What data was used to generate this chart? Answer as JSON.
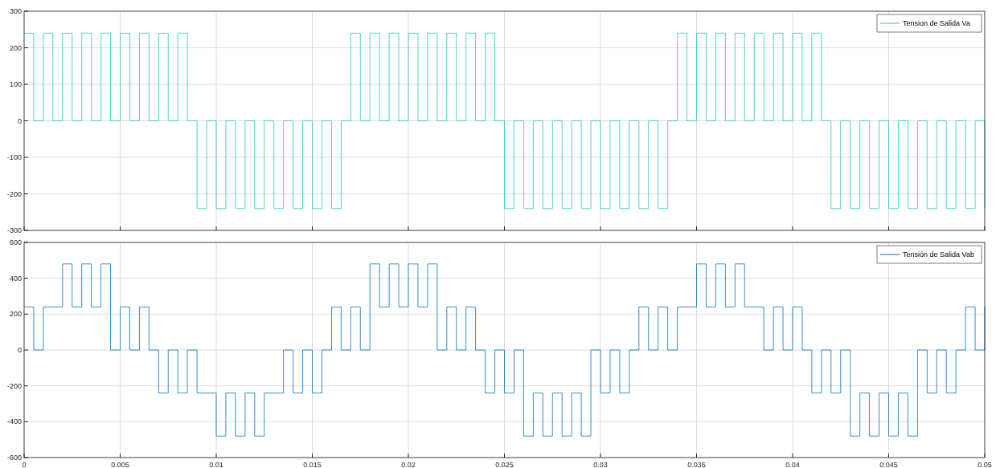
{
  "chart_data": [
    {
      "type": "step",
      "x": [
        0,
        0.0005,
        0.001,
        0.0015,
        0.002,
        0.0025,
        0.003,
        0.0035,
        0.004,
        0.0045,
        0.005,
        0.0055,
        0.006,
        0.0065,
        0.007,
        0.0075,
        0.008,
        0.0085,
        0.009,
        0.0095,
        0.01,
        0.0105,
        0.011,
        0.0115,
        0.012,
        0.0125,
        0.013,
        0.0135,
        0.014,
        0.0145,
        0.015,
        0.0155,
        0.016,
        0.0165,
        0.017,
        0.0175,
        0.018,
        0.0185,
        0.019,
        0.0195,
        0.02,
        0.0205,
        0.021,
        0.0215,
        0.022,
        0.0225,
        0.023,
        0.0235,
        0.024,
        0.0245,
        0.025,
        0.0255,
        0.026,
        0.0265,
        0.027,
        0.0275,
        0.028,
        0.0285,
        0.029,
        0.0295,
        0.03,
        0.0305,
        0.031,
        0.0315,
        0.032,
        0.0325,
        0.033,
        0.0335,
        0.034,
        0.0345,
        0.035,
        0.0355,
        0.036,
        0.0365,
        0.037,
        0.0375,
        0.038,
        0.0385,
        0.039,
        0.0395,
        0.04,
        0.0405,
        0.041,
        0.0415,
        0.042,
        0.0425,
        0.043,
        0.0435,
        0.044,
        0.0445,
        0.045,
        0.0455,
        0.046,
        0.0465,
        0.047,
        0.0475,
        0.048,
        0.0485,
        0.049,
        0.0495,
        0.05
      ],
      "series": [
        {
          "name": "Tension de Salida Va",
          "color": "#1ec8c8",
          "values": [
            240,
            0,
            240,
            0,
            240,
            0,
            240,
            0,
            240,
            0,
            240,
            0,
            240,
            0,
            240,
            0,
            240,
            0,
            -240,
            0,
            -240,
            0,
            -240,
            0,
            -240,
            0,
            -240,
            0,
            -240,
            0,
            -240,
            0,
            -240,
            0,
            240,
            0,
            240,
            0,
            240,
            0,
            240,
            0,
            240,
            0,
            240,
            0,
            240,
            0,
            240,
            0,
            -240,
            0,
            -240,
            0,
            -240,
            0,
            -240,
            0,
            -240,
            0,
            -240,
            0,
            -240,
            0,
            -240,
            0,
            -240,
            0,
            240,
            0,
            240,
            0,
            240,
            0,
            240,
            0,
            240,
            0,
            240,
            0,
            240,
            0,
            240,
            0,
            -240,
            0,
            -240,
            0,
            -240,
            0,
            -240,
            0,
            -240,
            0,
            -240,
            0,
            -240,
            0,
            -240,
            0,
            -240
          ]
        }
      ],
      "xlim": [
        0,
        0.05
      ],
      "xticks": [
        0,
        0.005,
        0.01,
        0.015,
        0.02,
        0.025,
        0.03,
        0.035,
        0.04,
        0.045,
        0.05
      ],
      "ylim": [
        -300,
        300
      ],
      "yticks": [
        -300,
        -200,
        -100,
        0,
        100,
        200,
        300
      ],
      "tick_labels": "y",
      "grid": true,
      "legend": "top right"
    },
    {
      "type": "step",
      "x": [
        0,
        0.0005,
        0.001,
        0.0015,
        0.002,
        0.0025,
        0.003,
        0.0035,
        0.004,
        0.0045,
        0.005,
        0.0055,
        0.006,
        0.0065,
        0.007,
        0.0075,
        0.008,
        0.0085,
        0.009,
        0.0095,
        0.01,
        0.0105,
        0.011,
        0.0115,
        0.012,
        0.0125,
        0.013,
        0.0135,
        0.014,
        0.0145,
        0.015,
        0.0155,
        0.016,
        0.0165,
        0.017,
        0.0175,
        0.018,
        0.0185,
        0.019,
        0.0195,
        0.02,
        0.0205,
        0.021,
        0.0215,
        0.022,
        0.0225,
        0.023,
        0.0235,
        0.024,
        0.0245,
        0.025,
        0.0255,
        0.026,
        0.0265,
        0.027,
        0.0275,
        0.028,
        0.0285,
        0.029,
        0.0295,
        0.03,
        0.0305,
        0.031,
        0.0315,
        0.032,
        0.0325,
        0.033,
        0.0335,
        0.034,
        0.0345,
        0.035,
        0.0355,
        0.036,
        0.0365,
        0.037,
        0.0375,
        0.038,
        0.0385,
        0.039,
        0.0395,
        0.04,
        0.0405,
        0.041,
        0.0415,
        0.042,
        0.0425,
        0.043,
        0.0435,
        0.044,
        0.0445,
        0.045,
        0.0455,
        0.046,
        0.0465,
        0.047,
        0.0475,
        0.048,
        0.0485,
        0.049,
        0.0495,
        0.05
      ],
      "series": [
        {
          "name": "Tensión de Salida Vab",
          "color": "#0072bd",
          "values": [
            240,
            0,
            240,
            240,
            480,
            240,
            480,
            240,
            480,
            0,
            240,
            0,
            240,
            0,
            -240,
            0,
            -240,
            0,
            -240,
            -240,
            -480,
            -240,
            -480,
            -240,
            -480,
            -240,
            -240,
            0,
            -240,
            0,
            -240,
            0,
            240,
            0,
            240,
            0,
            480,
            240,
            480,
            240,
            480,
            240,
            480,
            0,
            240,
            0,
            240,
            0,
            -240,
            0,
            -240,
            0,
            -480,
            -240,
            -480,
            -240,
            -480,
            -240,
            -480,
            0,
            -240,
            0,
            -240,
            0,
            240,
            0,
            240,
            0,
            240,
            240,
            480,
            240,
            480,
            240,
            480,
            240,
            240,
            0,
            240,
            0,
            240,
            0,
            -240,
            0,
            -240,
            0,
            -480,
            -240,
            -480,
            -240,
            -480,
            -240,
            -480,
            0,
            -240,
            0,
            -240,
            0,
            240,
            0,
            240
          ]
        }
      ],
      "xlim": [
        0,
        0.05
      ],
      "xticks": [
        0,
        0.005,
        0.01,
        0.015,
        0.02,
        0.025,
        0.03,
        0.035,
        0.04,
        0.045,
        0.05
      ],
      "ylim": [
        -600,
        600
      ],
      "yticks": [
        -600,
        -400,
        -200,
        0,
        200,
        400,
        600
      ],
      "grid": true,
      "legend": "top right"
    }
  ]
}
